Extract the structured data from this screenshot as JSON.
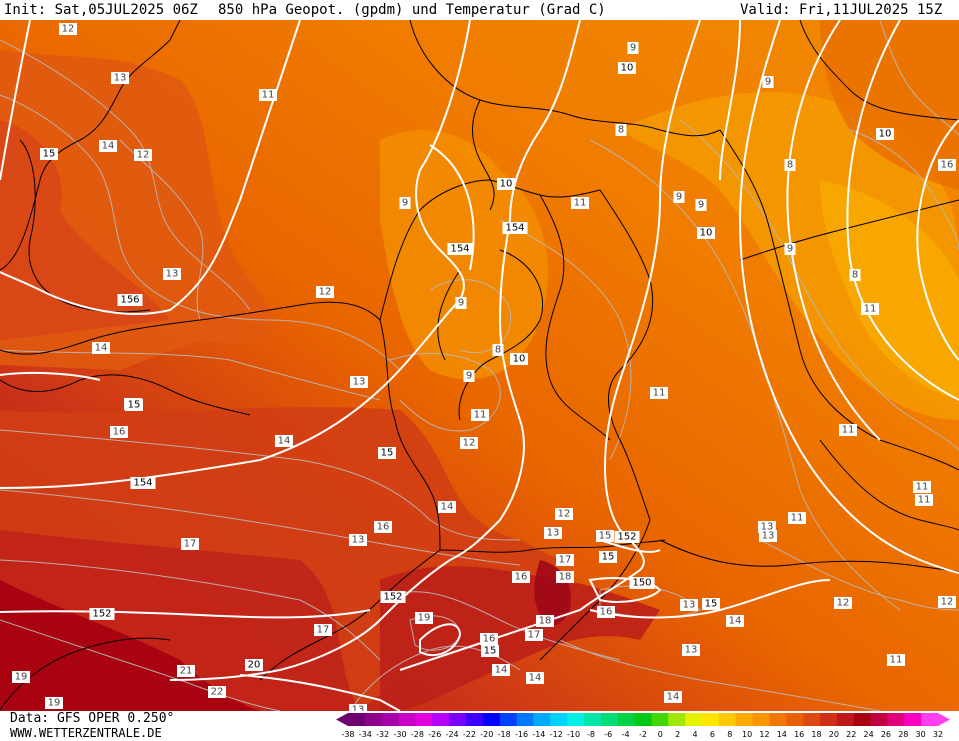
{
  "header": {
    "init": "Init: Sat,05JUL2025 06Z",
    "title": "850 hPa Geopot. (gpdm) und Temperatur (Grad C)",
    "valid": "Valid: Fri,11JUL2025 15Z"
  },
  "footer": {
    "data_source": "Data: GFS OPER 0.250°",
    "website": "WWW.WETTERZENTRALE.DE"
  },
  "legend": {
    "tick_labels": [
      "-38",
      "-34",
      "-32",
      "-30",
      "-28",
      "-26",
      "-24",
      "-22",
      "-20",
      "-18",
      "-16",
      "-14",
      "-12",
      "-10",
      "-8",
      "-6",
      "-4",
      "-2",
      "0",
      "2",
      "4",
      "6",
      "8",
      "10",
      "12",
      "14",
      "16",
      "18",
      "20",
      "22",
      "24",
      "26",
      "28",
      "30",
      "32"
    ],
    "colors": [
      "#6e0070",
      "#8c008c",
      "#a800a8",
      "#c800c8",
      "#e000e0",
      "#b400ff",
      "#7800ff",
      "#3c00ff",
      "#0000ff",
      "#0040ff",
      "#0078ff",
      "#00aaff",
      "#00d2ff",
      "#00f0e6",
      "#00e6aa",
      "#00dc78",
      "#00d246",
      "#00c814",
      "#40d800",
      "#a0e600",
      "#e6f000",
      "#ffe600",
      "#ffc800",
      "#ffaa00",
      "#ff9600",
      "#f07800",
      "#e86000",
      "#dc4a10",
      "#d03018",
      "#c01818",
      "#a80010",
      "#c00040",
      "#e0007a",
      "#ff00c0",
      "#ff40f0"
    ]
  },
  "map_labels": {
    "temperature": [
      {
        "v": "12"
      },
      {
        "v": "13"
      },
      {
        "v": "14"
      },
      {
        "v": "12"
      },
      {
        "v": "11"
      },
      {
        "v": "13"
      },
      {
        "v": "12"
      },
      {
        "v": "14"
      },
      {
        "v": "15"
      },
      {
        "v": "16"
      },
      {
        "v": "13"
      },
      {
        "v": "14"
      },
      {
        "v": "16"
      },
      {
        "v": "17"
      },
      {
        "v": "17"
      },
      {
        "v": "19"
      },
      {
        "v": "21"
      },
      {
        "v": "22"
      },
      {
        "v": "19"
      },
      {
        "v": "19"
      },
      {
        "v": "9"
      },
      {
        "v": "9"
      },
      {
        "v": "8"
      },
      {
        "v": "9"
      },
      {
        "v": "11"
      },
      {
        "v": "12"
      },
      {
        "v": "14"
      },
      {
        "v": "12"
      },
      {
        "v": "13"
      },
      {
        "v": "13"
      },
      {
        "v": "15"
      },
      {
        "v": "16"
      },
      {
        "v": "17"
      },
      {
        "v": "18"
      },
      {
        "v": "18"
      },
      {
        "v": "16"
      },
      {
        "v": "17"
      },
      {
        "v": "16"
      },
      {
        "v": "14"
      },
      {
        "v": "14"
      },
      {
        "v": "13"
      },
      {
        "v": "14"
      },
      {
        "v": "13"
      },
      {
        "v": "14"
      },
      {
        "v": "11"
      },
      {
        "v": "11"
      },
      {
        "v": "11"
      },
      {
        "v": "11"
      },
      {
        "v": "11"
      },
      {
        "v": "11"
      },
      {
        "v": "11"
      },
      {
        "v": "13"
      },
      {
        "v": "13"
      },
      {
        "v": "12"
      },
      {
        "v": "12"
      },
      {
        "v": "9"
      },
      {
        "v": "9"
      },
      {
        "v": "8"
      },
      {
        "v": "9"
      },
      {
        "v": "9"
      },
      {
        "v": "8"
      },
      {
        "v": "9"
      },
      {
        "v": "8"
      },
      {
        "v": "11"
      },
      {
        "v": "16"
      },
      {
        "v": "13"
      }
    ],
    "geopotential": [
      {
        "v": "156"
      },
      {
        "v": "154"
      },
      {
        "v": "154"
      },
      {
        "v": "154"
      },
      {
        "v": "152"
      },
      {
        "v": "152"
      },
      {
        "v": "152"
      },
      {
        "v": "150"
      },
      {
        "v": "20"
      },
      {
        "v": "15"
      },
      {
        "v": "15"
      },
      {
        "v": "15"
      },
      {
        "v": "15"
      },
      {
        "v": "15"
      },
      {
        "v": "15"
      },
      {
        "v": "10"
      },
      {
        "v": "10"
      },
      {
        "v": "10"
      },
      {
        "v": "10"
      },
      {
        "v": "10"
      }
    ]
  }
}
